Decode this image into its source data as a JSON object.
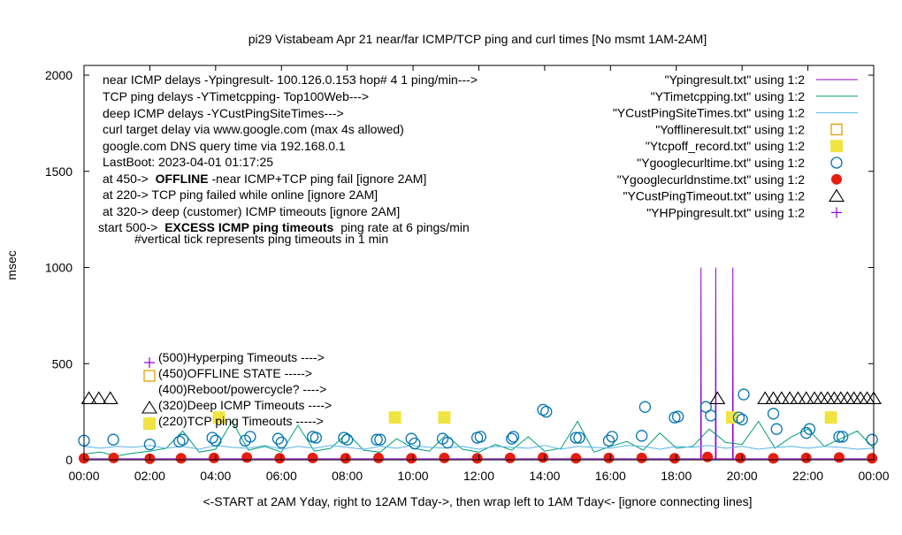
{
  "chart_data": {
    "type": "line",
    "title": "pi29 Vistabeam Apr 21  near/far ICMP/TCP ping and curl times [No msmt 1AM-2AM]",
    "xlabel": "<-START at 2AM Yday, right to 12AM Tday->, then wrap left to 1AM Tday<- [ignore connecting lines]",
    "ylabel": "msec",
    "xlim": [
      0,
      24
    ],
    "ylim": [
      0,
      2000
    ],
    "x_ticks": [
      "00:00",
      "02:00",
      "04:00",
      "06:00",
      "08:00",
      "10:00",
      "12:00",
      "14:00",
      "16:00",
      "18:00",
      "20:00",
      "22:00",
      "00:00"
    ],
    "y_ticks": [
      "0",
      "500",
      "1000",
      "1500",
      "2000"
    ],
    "annotations": [
      "near ICMP delays -Ypingresult- 100.126.0.153 hop# 4 1 ping/min--->",
      "TCP ping delays -YTimetcpping- Top100Web--->",
      "deep ICMP delays -YCustPingSiteTimes--->",
      "curl target delay via www.google.com (max 4s allowed)",
      "google.com DNS query time via 192.168.0.1",
      "LastBoot: 2023-04-01 01:17:25"
    ],
    "annotations2": {
      "offline_pre": "at 450->",
      "offline_bold": "OFFLINE",
      "offline_post": "-near ICMP+TCP ping fail [ignore 2AM]",
      "tcp_fail": "at 220-> TCP ping failed while online [ignore 2AM]",
      "deep_fail": "at 320-> deep (customer) ICMP timeouts [ignore 2AM]",
      "excess_pre": "start 500->",
      "excess_bold": "EXCESS ICMP ping timeouts",
      "excess_post": "ping rate at 6 pings/min",
      "tick_note": "#vertical tick represents ping timeouts in 1 min"
    },
    "level_legend": [
      {
        "text": "(500)Hyperping Timeouts ---->",
        "marker": "plus",
        "color": "#9400d3"
      },
      {
        "text": "(450)OFFLINE STATE ----->",
        "marker": "square-open",
        "color": "#e69f00"
      },
      {
        "text": "(400)Reboot/powercycle? ---->",
        "marker": "none",
        "color": "#000000"
      },
      {
        "text": "(320)Deep ICMP Timeouts ---->",
        "marker": "triangle",
        "color": "#000000"
      },
      {
        "text": "(220)TCP ping Timeouts ----->",
        "marker": "square-filled",
        "color": "#f0e442"
      }
    ],
    "legend_position": "top-right",
    "series": [
      {
        "name": "\"Ypingresult.txt\" using 1:2",
        "style": "line",
        "color": "#9400d3",
        "x": [
          0,
          18.74,
          18.75,
          18.76,
          19.19,
          19.2,
          19.21,
          19.71,
          19.72,
          19.73,
          24
        ],
        "y": [
          5,
          5,
          1000,
          5,
          5,
          1000,
          5,
          5,
          1000,
          5,
          5
        ]
      },
      {
        "name": "\"YTimetcpping.txt\" using 1:2",
        "style": "line",
        "color": "#009e73",
        "x": [
          0,
          0.5,
          1,
          1.5,
          2,
          2.5,
          3,
          3.5,
          4,
          4.5,
          5,
          5.5,
          6,
          6.5,
          7,
          7.5,
          8,
          8.5,
          9,
          9.5,
          10,
          10.5,
          11,
          11.5,
          12,
          12.5,
          13,
          13.5,
          14,
          14.5,
          15,
          15.5,
          16,
          16.5,
          17,
          17.5,
          18,
          18.5,
          19,
          19.5,
          20,
          20.5,
          21,
          21.5,
          22,
          22.5,
          23,
          23.5,
          24
        ],
        "y": [
          30,
          40,
          20,
          35,
          45,
          60,
          150,
          40,
          55,
          200,
          50,
          70,
          40,
          180,
          45,
          60,
          140,
          50,
          40,
          110,
          60,
          45,
          130,
          55,
          40,
          80,
          50,
          120,
          45,
          60,
          200,
          40,
          70,
          95,
          50,
          140,
          60,
          70,
          160,
          90,
          80,
          200,
          60,
          120,
          160,
          70,
          110,
          150,
          60
        ]
      },
      {
        "name": "\"YCustPingSiteTimes.txt\" using 1:2",
        "style": "line",
        "color": "#56b4e9",
        "x": [
          0,
          0.5,
          1,
          1.5,
          2,
          2.5,
          3,
          3.5,
          4,
          4.5,
          5,
          5.5,
          6,
          6.5,
          7,
          7.5,
          8,
          8.5,
          9,
          9.5,
          10,
          10.5,
          11,
          11.5,
          12,
          12.5,
          13,
          13.5,
          14,
          14.5,
          15,
          15.5,
          16,
          16.5,
          17,
          17.5,
          18,
          18.5,
          19,
          19.5,
          20,
          20.5,
          21,
          21.5,
          22,
          22.5,
          23,
          23.5,
          24
        ],
        "y": [
          70,
          60,
          70,
          65,
          75,
          60,
          70,
          55,
          75,
          65,
          60,
          75,
          55,
          70,
          60,
          75,
          65,
          55,
          70,
          60,
          75,
          65,
          60,
          70,
          55,
          70,
          65,
          60,
          75,
          55,
          70,
          65,
          60,
          75,
          70,
          55,
          70,
          65,
          75,
          60,
          70,
          55,
          65,
          70,
          60,
          70,
          65,
          55,
          60
        ]
      },
      {
        "name": "\"Yofflineresult.txt\" using 1:2",
        "style": "square-open",
        "color": "#e69f00",
        "x": [],
        "y": []
      },
      {
        "name": "\"Ytcpoff_record.txt\" using 1:2",
        "style": "square-filled",
        "color": "#f0e442",
        "x": [
          4.1,
          9.45,
          10.95,
          19.7,
          22.7
        ],
        "y": [
          220,
          220,
          220,
          220,
          220
        ]
      },
      {
        "name": "\"Ygooglecurltime.txt\" using 1:2",
        "style": "circle-open",
        "color": "#0072b2",
        "x": [
          0,
          0.89,
          2.0,
          2.9,
          3.0,
          3.9,
          4.0,
          4.9,
          5.05,
          5.9,
          6.0,
          6.95,
          7.05,
          7.9,
          8.0,
          8.9,
          9.0,
          9.95,
          10.05,
          10.9,
          11.05,
          11.95,
          12.05,
          13.0,
          13.05,
          13.95,
          14.05,
          14.95,
          15.05,
          15.95,
          16.05,
          16.95,
          17.05,
          17.95,
          18.05,
          18.9,
          19.05,
          19.9,
          20.0,
          20.05,
          20.95,
          21.05,
          21.95,
          22.05,
          22.95,
          23.05,
          23.95
        ],
        "y": [
          100,
          105,
          80,
          95,
          105,
          115,
          100,
          100,
          120,
          110,
          90,
          120,
          115,
          115,
          105,
          105,
          105,
          110,
          85,
          110,
          90,
          115,
          120,
          110,
          120,
          260,
          250,
          115,
          115,
          100,
          120,
          125,
          275,
          220,
          225,
          275,
          230,
          220,
          210,
          340,
          240,
          160,
          140,
          160,
          120,
          120,
          105
        ]
      },
      {
        "name": "\"Ygooglecurldnstime.txt\" using 1:2",
        "style": "circle-filled",
        "color": "#e51e10",
        "x": [
          0,
          0.9,
          2.0,
          2.95,
          3.95,
          4.95,
          5.95,
          6.95,
          7.95,
          8.95,
          9.95,
          10.95,
          11.95,
          12.95,
          13.95,
          14.95,
          15.95,
          16.95,
          17.95,
          18.95,
          19.95,
          20.95,
          21.95,
          22.95,
          23.95
        ],
        "y": [
          8,
          10,
          6,
          8,
          10,
          12,
          8,
          10,
          8,
          10,
          8,
          10,
          8,
          10,
          12,
          8,
          10,
          10,
          8,
          15,
          10,
          8,
          10,
          12,
          8
        ]
      },
      {
        "name": "\"YCustPingTimeout.txt\" using 1:2",
        "style": "triangle-open",
        "color": "#000000",
        "x": [
          0.15,
          0.45,
          0.8,
          19.25,
          20.7,
          20.95,
          21.2,
          21.45,
          21.7,
          21.95,
          22.2,
          22.4,
          22.6,
          22.8,
          23.0,
          23.2,
          23.4,
          23.6,
          23.8,
          24.0
        ],
        "y": [
          320,
          320,
          320,
          320,
          320,
          320,
          320,
          320,
          320,
          320,
          320,
          320,
          320,
          320,
          320,
          320,
          320,
          320,
          320,
          320
        ]
      },
      {
        "name": "\"YHPpingresult.txt\" using 1:2",
        "style": "plus",
        "color": "#9400d3",
        "x": [],
        "y": []
      }
    ]
  }
}
